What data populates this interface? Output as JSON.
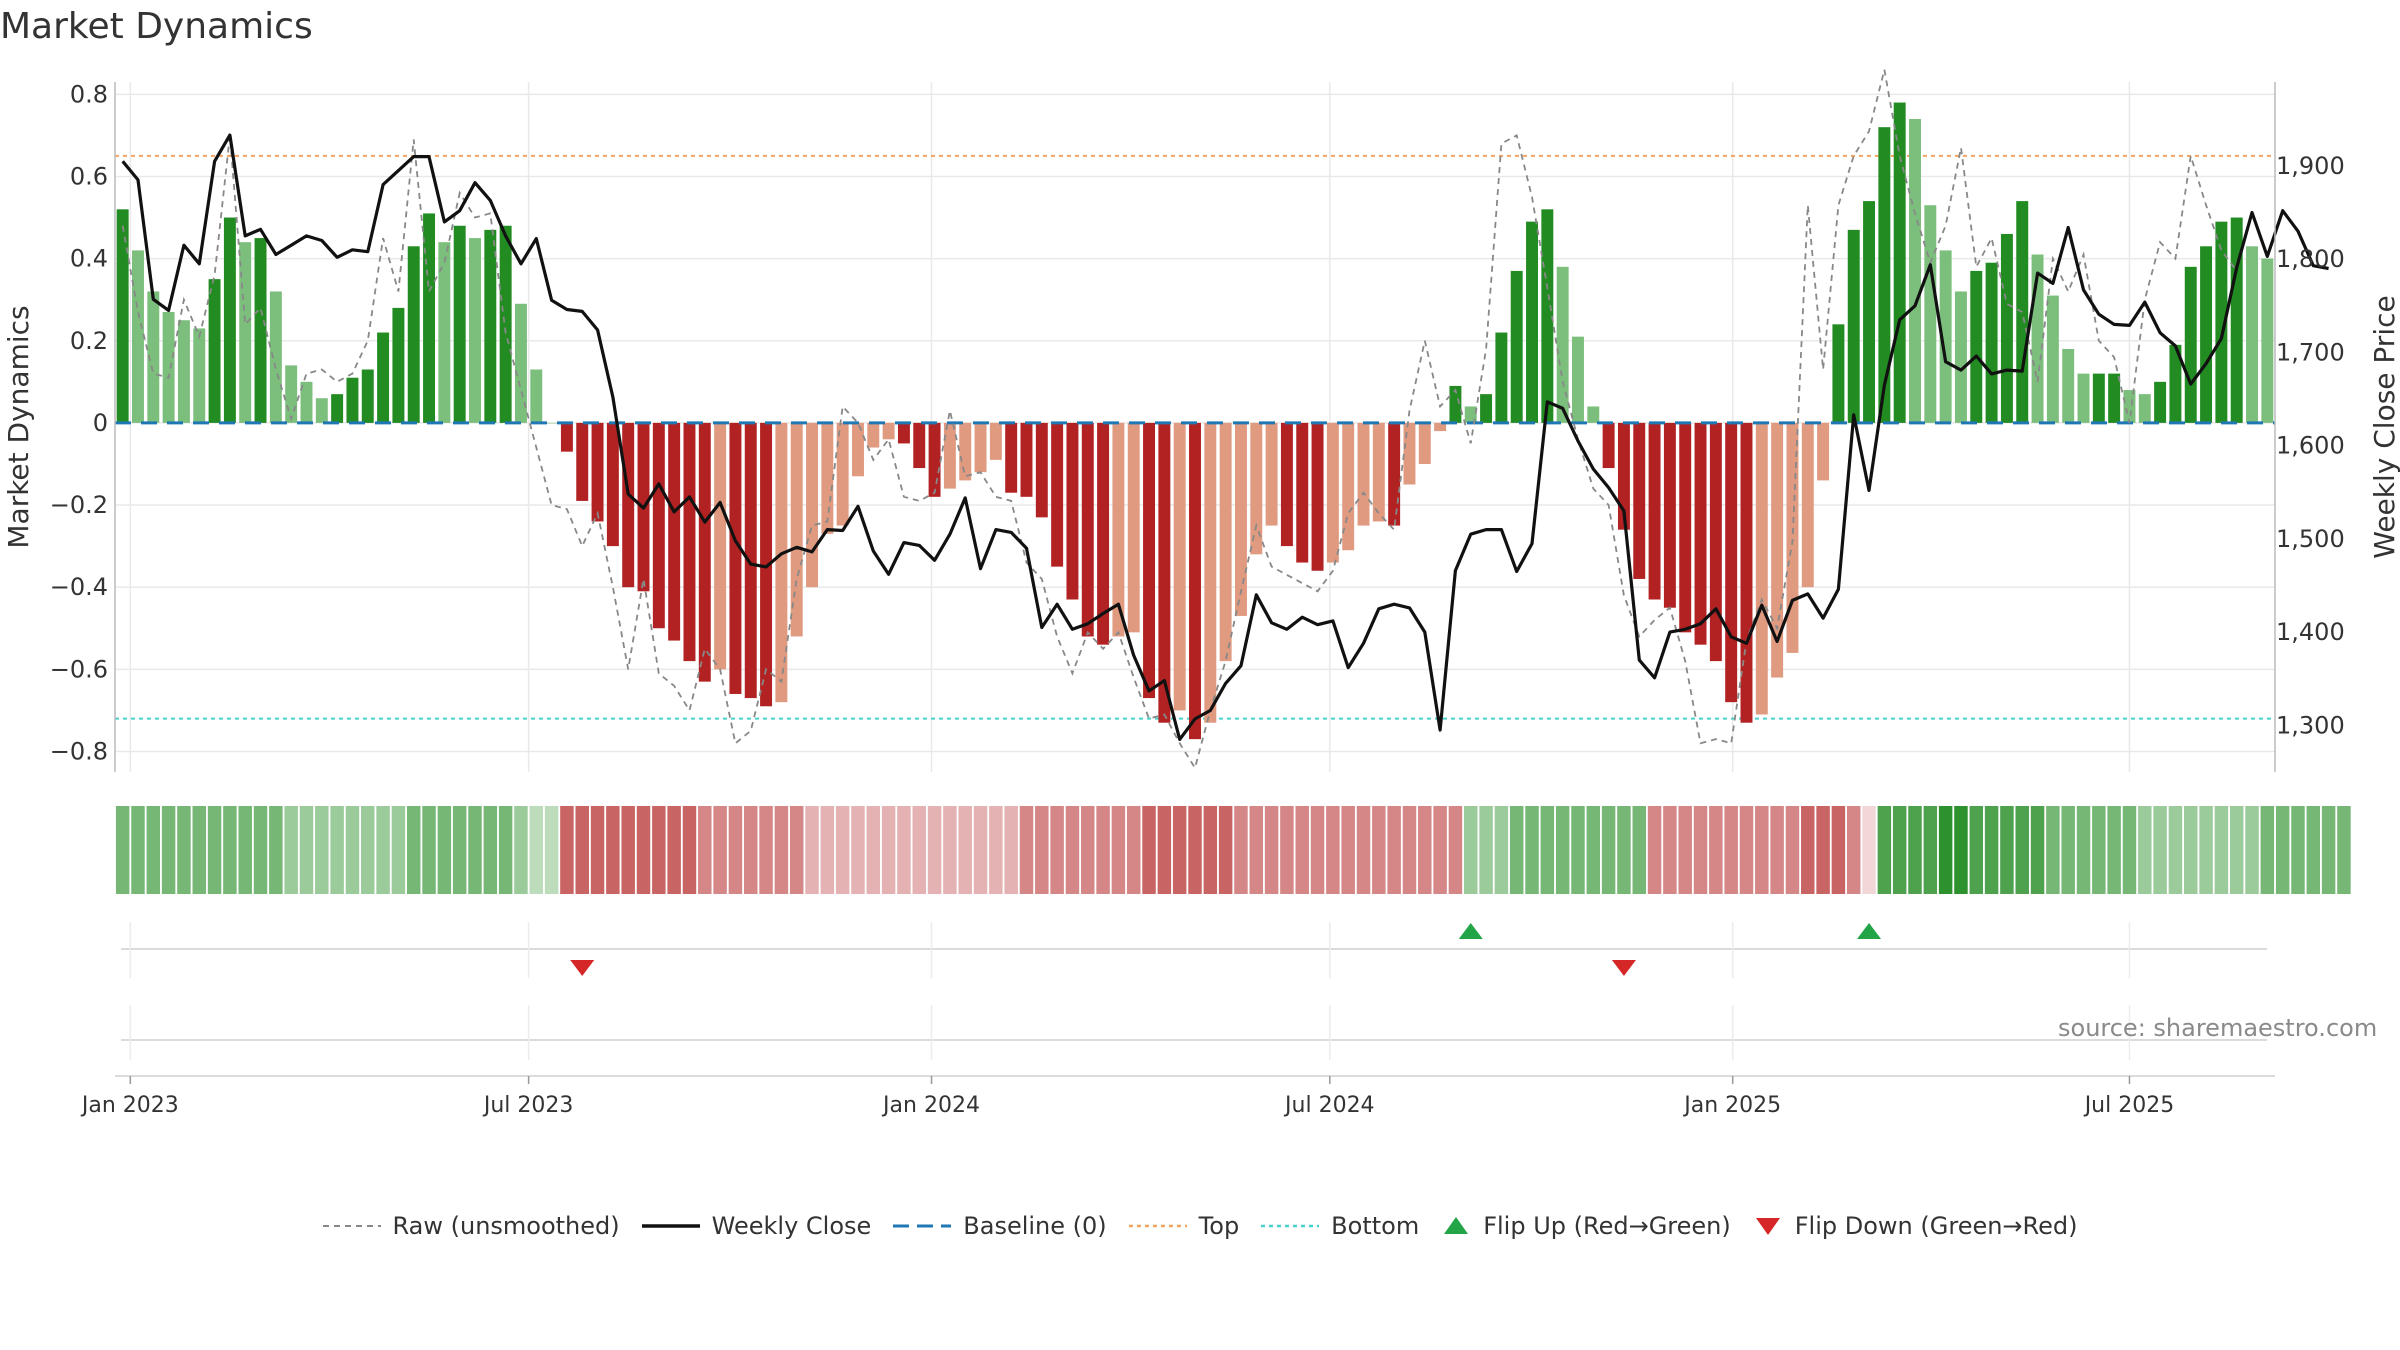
{
  "chart_data": {
    "type": "bar",
    "title": "Market Dynamics",
    "source": "source: sharemaestro.com",
    "ylabel_left": "Market Dynamics",
    "ylabel_right": "Weekly Close Price",
    "ylim_left": [
      -0.85,
      0.83
    ],
    "ylim_right": [
      1250,
      1990
    ],
    "left_ticks": [
      0.8,
      0.6,
      0.4,
      0.2,
      0,
      -0.2,
      -0.4,
      -0.6,
      -0.8
    ],
    "left_tick_labels": [
      "0.8",
      "0.6",
      "0.4",
      "0.2",
      "0",
      "−0.2",
      "−0.4",
      "−0.6",
      "−0.8"
    ],
    "right_ticks": [
      1900,
      1800,
      1700,
      1600,
      1500,
      1400,
      1300
    ],
    "right_tick_labels": [
      "1,900",
      "1,800",
      "1,700",
      "1,600",
      "1,500",
      "1,400",
      "1,300"
    ],
    "x_tick_labels": [
      {
        "label": "Jan 2023",
        "week": 0.5
      },
      {
        "label": "Jul 2023",
        "week": 26.5
      },
      {
        "label": "Jan 2024",
        "week": 52.8
      },
      {
        "label": "Jul 2024",
        "week": 78.8
      },
      {
        "label": "Jan 2025",
        "week": 105.1
      },
      {
        "label": "Jul 2025",
        "week": 131
      }
    ],
    "top_level": 0.65,
    "bottom_level": -0.72,
    "grid": true,
    "legend_position": "bottom",
    "smoothed_values": [
      0.52,
      0.42,
      0.32,
      0.27,
      0.25,
      0.23,
      0.35,
      0.5,
      0.44,
      0.45,
      0.32,
      0.14,
      0.1,
      0.06,
      0.07,
      0.11,
      0.13,
      0.22,
      0.28,
      0.43,
      0.51,
      0.44,
      0.48,
      0.45,
      0.47,
      0.48,
      0.29,
      0.13,
      0.0,
      -0.07,
      -0.19,
      -0.24,
      -0.3,
      -0.4,
      -0.41,
      -0.5,
      -0.53,
      -0.58,
      -0.63,
      -0.6,
      -0.66,
      -0.67,
      -0.69,
      -0.68,
      -0.52,
      -0.4,
      -0.27,
      -0.25,
      -0.13,
      -0.06,
      -0.04,
      -0.05,
      -0.11,
      -0.18,
      -0.16,
      -0.14,
      -0.12,
      -0.09,
      -0.17,
      -0.18,
      -0.23,
      -0.35,
      -0.43,
      -0.52,
      -0.54,
      -0.52,
      -0.51,
      -0.67,
      -0.73,
      -0.7,
      -0.77,
      -0.73,
      -0.58,
      -0.47,
      -0.32,
      -0.25,
      -0.3,
      -0.34,
      -0.36,
      -0.34,
      -0.31,
      -0.25,
      -0.24,
      -0.25,
      -0.15,
      -0.1,
      -0.02,
      0.09,
      0.04,
      0.07,
      0.22,
      0.37,
      0.49,
      0.52,
      0.38,
      0.21,
      0.04,
      -0.11,
      -0.26,
      -0.38,
      -0.43,
      -0.45,
      -0.51,
      -0.54,
      -0.58,
      -0.68,
      -0.73,
      -0.71,
      -0.62,
      -0.56,
      -0.4,
      -0.14,
      0.24,
      0.47,
      0.54,
      0.72,
      0.78,
      0.74,
      0.53,
      0.42,
      0.32,
      0.37,
      0.39,
      0.46,
      0.54,
      0.41,
      0.31,
      0.18,
      0.12,
      0.12,
      0.12,
      0.08,
      0.07,
      0.1,
      0.19,
      0.38,
      0.43,
      0.49,
      0.5,
      0.43,
      0.4
    ],
    "raw_values": [
      0.48,
      0.27,
      0.12,
      0.11,
      0.3,
      0.21,
      0.36,
      0.7,
      0.24,
      0.28,
      0.13,
      0.01,
      0.12,
      0.13,
      0.1,
      0.12,
      0.2,
      0.45,
      0.32,
      0.69,
      0.32,
      0.39,
      0.56,
      0.5,
      0.51,
      0.22,
      0.08,
      -0.06,
      -0.2,
      -0.21,
      -0.3,
      -0.22,
      -0.4,
      -0.6,
      -0.38,
      -0.61,
      -0.64,
      -0.7,
      -0.55,
      -0.6,
      -0.78,
      -0.75,
      -0.6,
      -0.63,
      -0.38,
      -0.25,
      -0.24,
      0.04,
      0.0,
      -0.09,
      -0.04,
      -0.18,
      -0.19,
      -0.17,
      0.03,
      -0.13,
      -0.12,
      -0.18,
      -0.19,
      -0.34,
      -0.38,
      -0.52,
      -0.61,
      -0.51,
      -0.55,
      -0.51,
      -0.62,
      -0.72,
      -0.71,
      -0.78,
      -0.84,
      -0.7,
      -0.58,
      -0.41,
      -0.25,
      -0.35,
      -0.37,
      -0.39,
      -0.41,
      -0.36,
      -0.22,
      -0.17,
      -0.22,
      -0.26,
      0.03,
      0.2,
      0.04,
      0.08,
      -0.05,
      0.18,
      0.68,
      0.7,
      0.55,
      0.33,
      0.1,
      -0.04,
      -0.16,
      -0.2,
      -0.42,
      -0.52,
      -0.48,
      -0.45,
      -0.58,
      -0.78,
      -0.77,
      -0.78,
      -0.53,
      -0.43,
      -0.5,
      -0.29,
      0.53,
      0.13,
      0.53,
      0.65,
      0.71,
      0.86,
      0.65,
      0.51,
      0.39,
      0.48,
      0.67,
      0.38,
      0.45,
      0.29,
      0.27,
      0.1,
      0.4,
      0.32,
      0.41,
      0.2,
      0.16,
      0.0,
      0.3,
      0.44,
      0.4,
      0.65,
      0.53,
      0.42,
      0.37
    ],
    "weekly_close": [
      1905,
      1885,
      1757,
      1745,
      1815,
      1795,
      1905,
      1933,
      1825,
      1832,
      1805,
      1815,
      1825,
      1820,
      1802,
      1810,
      1808,
      1880,
      1895,
      1910,
      1910,
      1840,
      1852,
      1882,
      1863,
      1825,
      1795,
      1822,
      1756,
      1746,
      1744,
      1724,
      1652,
      1548,
      1533,
      1559,
      1529,
      1545,
      1518,
      1539,
      1498,
      1473,
      1470,
      1484,
      1491,
      1486,
      1510,
      1509,
      1535,
      1487,
      1462,
      1496,
      1493,
      1477,
      1505,
      1544,
      1468,
      1510,
      1507,
      1490,
      1405,
      1430,
      1403,
      1409,
      1420,
      1430,
      1375,
      1337,
      1348,
      1285,
      1307,
      1316,
      1345,
      1364,
      1440,
      1410,
      1403,
      1416,
      1408,
      1412,
      1362,
      1388,
      1425,
      1430,
      1426,
      1400,
      1295,
      1466,
      1505,
      1510,
      1510,
      1465,
      1495,
      1647,
      1640,
      1605,
      1575,
      1555,
      1530,
      1370,
      1351,
      1400,
      1403,
      1409,
      1425,
      1395,
      1388,
      1429,
      1390,
      1434,
      1441,
      1415,
      1446,
      1633,
      1552,
      1665,
      1735,
      1750,
      1794,
      1690,
      1681,
      1696,
      1677,
      1681,
      1680,
      1785,
      1774,
      1834,
      1767,
      1741,
      1730,
      1729,
      1754,
      1721,
      1707,
      1666,
      1688,
      1715,
      1791,
      1850,
      1803,
      1852,
      1830,
      1793,
      1790
    ],
    "ribbon_levels": [
      3,
      3,
      3,
      3,
      3,
      3,
      3,
      3,
      3,
      3,
      3,
      2,
      2,
      2,
      2,
      2,
      2,
      2,
      2,
      3,
      3,
      3,
      3,
      3,
      3,
      3,
      2,
      1,
      1,
      -4,
      -4,
      -4,
      -4,
      -4,
      -4,
      -4,
      -4,
      -4,
      -3,
      -3,
      -3,
      -3,
      -3,
      -3,
      -3,
      -2,
      -2,
      -2,
      -2,
      -2,
      -2,
      -2,
      -2,
      -2,
      -2,
      -2,
      -2,
      -2,
      -2,
      -3,
      -3,
      -3,
      -3,
      -3,
      -3,
      -3,
      -3,
      -4,
      -4,
      -4,
      -4,
      -4,
      -4,
      -3,
      -3,
      -3,
      -3,
      -3,
      -3,
      -3,
      -3,
      -3,
      -3,
      -3,
      -3,
      -3,
      -3,
      -3,
      2,
      2,
      2,
      3,
      3,
      3,
      3,
      3,
      3,
      3,
      3,
      3,
      -3,
      -3,
      -3,
      -3,
      -3,
      -3,
      -3,
      -3,
      -3,
      -3,
      -4,
      -4,
      -4,
      -3,
      -1,
      4,
      4,
      4,
      4,
      5,
      5,
      4,
      4,
      4,
      4,
      4,
      3,
      3,
      3,
      3,
      3,
      3,
      2,
      2,
      2,
      2,
      2,
      2,
      2,
      2,
      3,
      3,
      3,
      3,
      3,
      3
    ],
    "flip_up_weeks": [
      88,
      114
    ],
    "flip_down_weeks": [
      30,
      98
    ],
    "series": [
      {
        "name": "Raw (unsmoothed)"
      },
      {
        "name": "Weekly Close"
      },
      {
        "name": "Baseline (0)"
      },
      {
        "name": "Top"
      },
      {
        "name": "Bottom"
      },
      {
        "name": "Flip Up (Red→Green)"
      },
      {
        "name": "Flip Down (Green→Red)"
      }
    ],
    "colors": {
      "green_strong": "#228B22",
      "green_light": "#7cbf7c",
      "red_strong": "#b22222",
      "red_light": "#e09a80",
      "raw_line": "#888888",
      "close_line": "#111111",
      "baseline": "#1f77b4",
      "top": "#f4a460",
      "bottom": "#48d1cc",
      "flip_up": "#22a447",
      "flip_down": "#d62728",
      "grid": "#e9e9e9",
      "axis_text": "#333333"
    }
  }
}
